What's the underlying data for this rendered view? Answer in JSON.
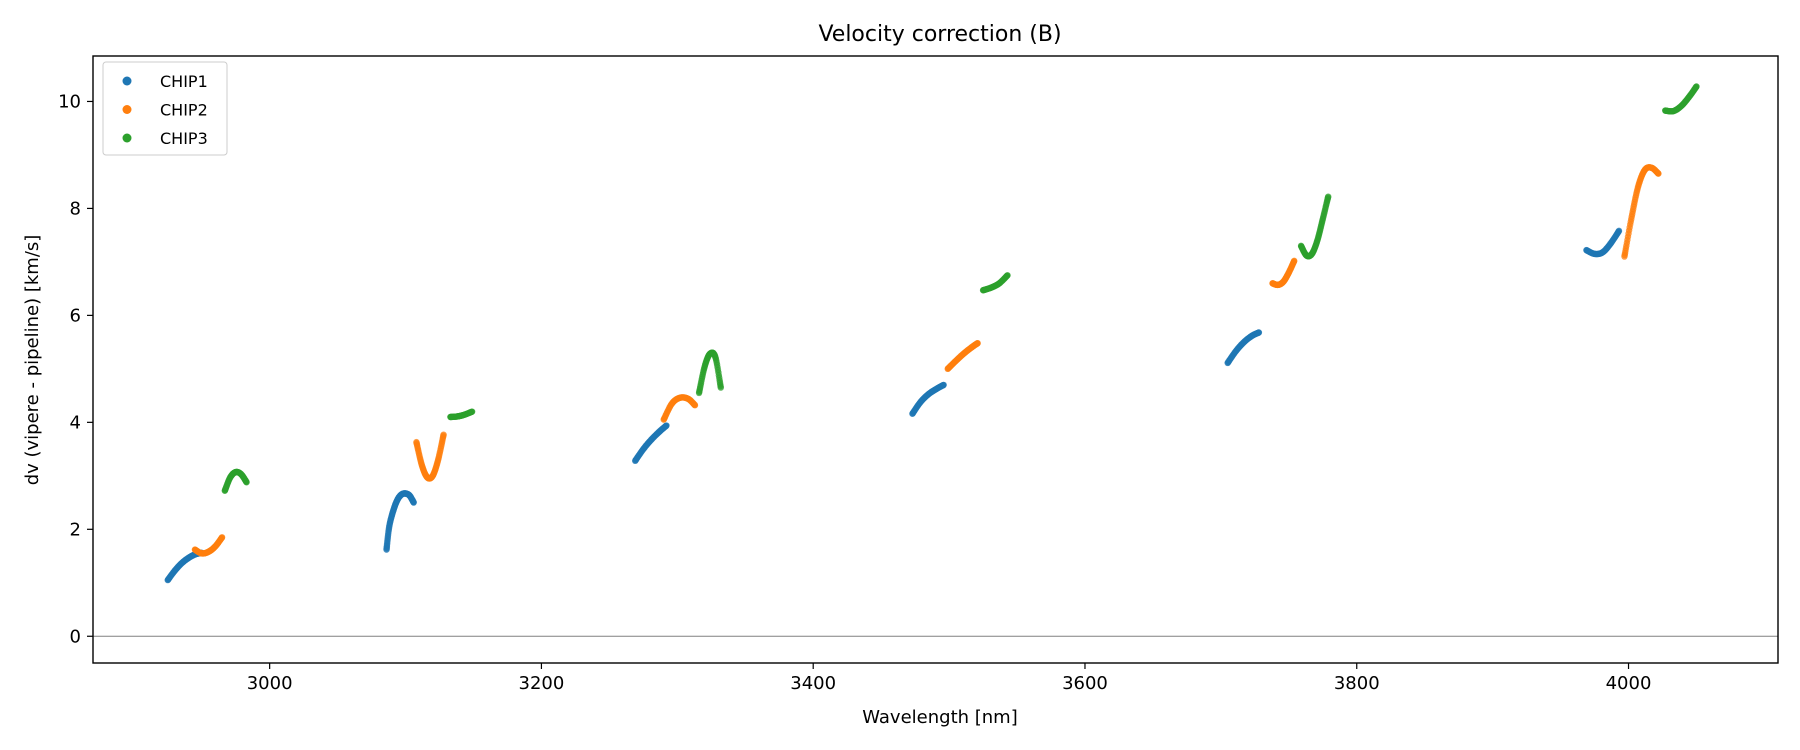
{
  "chart_data": {
    "type": "scatter",
    "title": "Velocity correction (B)",
    "xlabel": "Wavelength [nm]",
    "ylabel": "dv (vipere - pipeline) [km/s]",
    "xlim": [
      2870,
      4110
    ],
    "ylim": [
      -0.5,
      10.85
    ],
    "xticks": [
      3000,
      3200,
      3400,
      3600,
      3800,
      4000
    ],
    "yticks": [
      0,
      2,
      4,
      6,
      8,
      10
    ],
    "grid": false,
    "zero_line": true,
    "legend_position": "top-left",
    "colors": {
      "CHIP1": "#1f77b4",
      "CHIP2": "#ff7f0e",
      "CHIP3": "#2ca02c",
      "zero_line": "#808080"
    },
    "series": [
      {
        "name": "CHIP1",
        "color": "#1f77b4",
        "segments": [
          {
            "x": [
              2925,
              2930,
              2935,
              2940,
              2945,
              2950
            ],
            "y": [
              1.05,
              1.22,
              1.36,
              1.46,
              1.53,
              1.56
            ]
          },
          {
            "x": [
              3086,
              3088,
              3091,
              3094,
              3097,
              3100,
              3103,
              3106
            ],
            "y": [
              1.62,
              2.05,
              2.35,
              2.55,
              2.65,
              2.67,
              2.63,
              2.5
            ]
          },
          {
            "x": [
              3269,
              3275,
              3281,
              3287,
              3292
            ],
            "y": [
              3.28,
              3.5,
              3.68,
              3.83,
              3.94
            ]
          },
          {
            "x": [
              3473,
              3479,
              3485,
              3491,
              3496
            ],
            "y": [
              4.16,
              4.38,
              4.53,
              4.63,
              4.7
            ]
          },
          {
            "x": [
              3705,
              3711,
              3717,
              3723,
              3728
            ],
            "y": [
              5.11,
              5.33,
              5.5,
              5.62,
              5.68
            ]
          },
          {
            "x": [
              3969,
              3975,
              3981,
              3987,
              3993
            ],
            "y": [
              7.22,
              7.15,
              7.18,
              7.35,
              7.58
            ]
          }
        ]
      },
      {
        "name": "CHIP2",
        "color": "#ff7f0e",
        "segments": [
          {
            "x": [
              2945,
              2950,
              2955,
              2960,
              2965
            ],
            "y": [
              1.62,
              1.55,
              1.58,
              1.68,
              1.85
            ]
          },
          {
            "x": [
              3108,
              3112,
              3116,
              3120,
              3124,
              3128
            ],
            "y": [
              3.63,
              3.2,
              2.97,
              3.0,
              3.3,
              3.77
            ]
          },
          {
            "x": [
              3290,
              3296,
              3302,
              3308,
              3313
            ],
            "y": [
              4.05,
              4.35,
              4.46,
              4.44,
              4.32
            ]
          },
          {
            "x": [
              3499,
              3505,
              3511,
              3517,
              3521
            ],
            "y": [
              5.0,
              5.15,
              5.29,
              5.41,
              5.48
            ]
          },
          {
            "x": [
              3738,
              3742,
              3746,
              3750,
              3754
            ],
            "y": [
              6.6,
              6.57,
              6.63,
              6.8,
              7.02
            ]
          },
          {
            "x": [
              3997,
              4002,
              4007,
              4012,
              4017,
              4022
            ],
            "y": [
              7.1,
              7.8,
              8.4,
              8.72,
              8.76,
              8.65
            ]
          }
        ]
      },
      {
        "name": "CHIP3",
        "color": "#2ca02c",
        "segments": [
          {
            "x": [
              2967,
              2971,
              2975,
              2979,
              2983
            ],
            "y": [
              2.72,
              2.97,
              3.07,
              3.03,
              2.88
            ]
          },
          {
            "x": [
              3133,
              3138,
              3143,
              3149
            ],
            "y": [
              4.1,
              4.11,
              4.14,
              4.2
            ]
          },
          {
            "x": [
              3316,
              3320,
              3324,
              3328,
              3332
            ],
            "y": [
              4.55,
              5.03,
              5.28,
              5.22,
              4.65
            ]
          },
          {
            "x": [
              3525,
              3531,
              3537,
              3543
            ],
            "y": [
              6.47,
              6.52,
              6.6,
              6.75
            ]
          },
          {
            "x": [
              3759,
              3763,
              3767,
              3771,
              3775,
              3779
            ],
            "y": [
              7.3,
              7.12,
              7.15,
              7.4,
              7.8,
              8.22
            ]
          },
          {
            "x": [
              4027,
              4033,
              4039,
              4045,
              4050
            ],
            "y": [
              9.83,
              9.82,
              9.92,
              10.1,
              10.28
            ]
          }
        ]
      }
    ]
  }
}
